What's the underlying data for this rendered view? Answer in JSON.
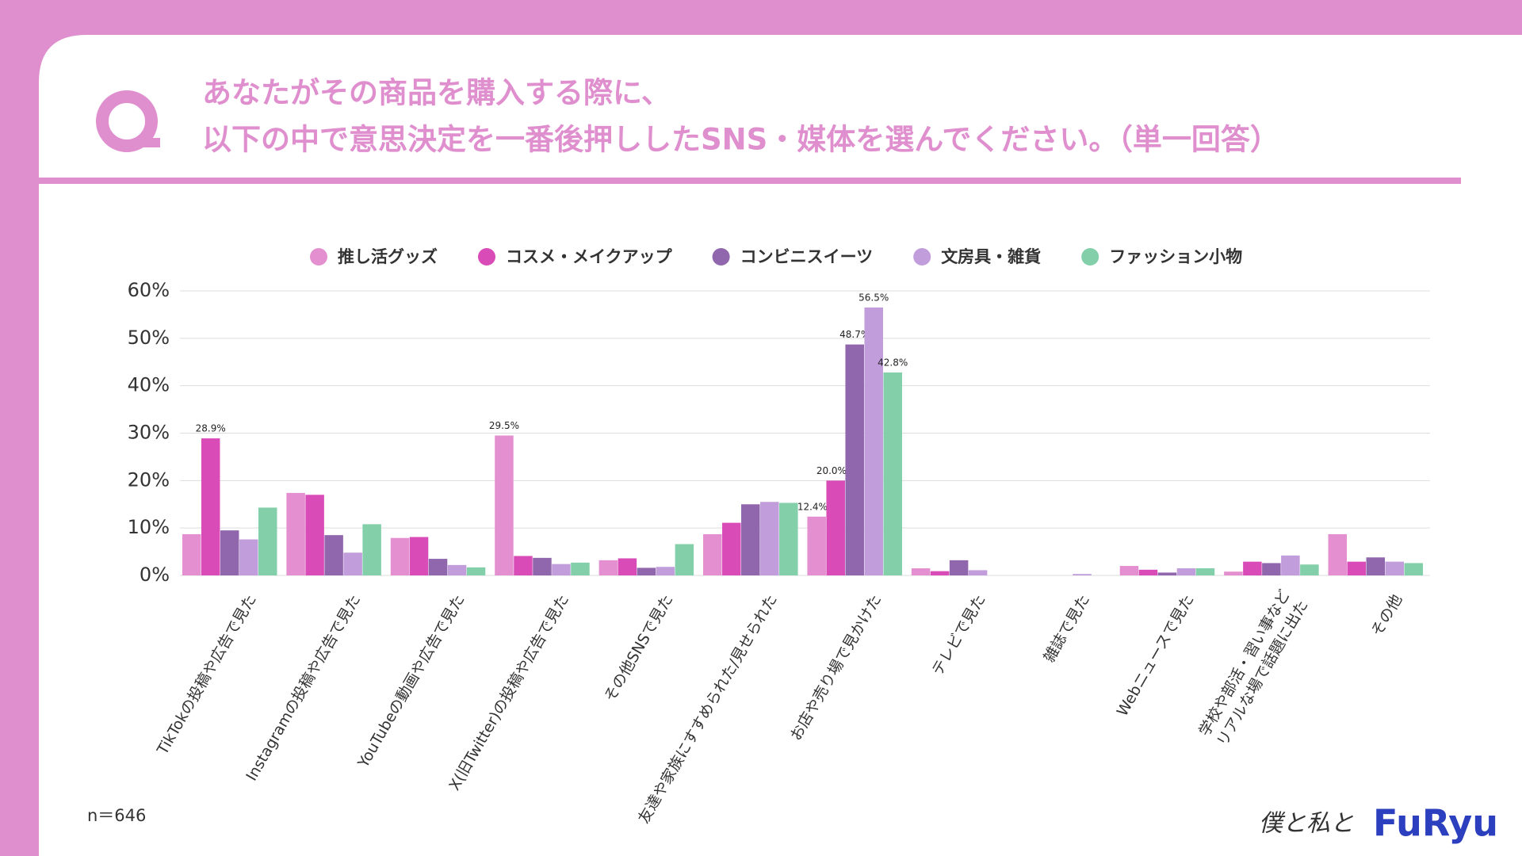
{
  "chart_data": {
    "type": "bar",
    "title": [
      "あなたがその商品を購入する際に、",
      "以下の中で意思決定を一番後押ししたSNS・媒体を選んでください。（単一回答）"
    ],
    "categories": [
      "TikTokの投稿や広告で見た",
      "Instagramの投稿や広告で見た",
      "YouTubeの動画や広告で見た",
      "X(旧Twitter)の投稿や広告で見た",
      "その他SNSで見た",
      "友達や家族にすすめられた/見せられた",
      "お店や売り場で見かけた",
      "テレビで見た",
      "雑誌で見た",
      "Webニュースで見た",
      [
        "学校や部活・習い事など",
        "リアルな場で話題に出た"
      ],
      "その他"
    ],
    "series": [
      {
        "name": "推し活グッズ",
        "color": "#e48fcf",
        "values": [
          8.7,
          17.4,
          7.9,
          29.5,
          3.2,
          8.7,
          12.4,
          1.5,
          0,
          2.0,
          0.8,
          8.7
        ],
        "value_labels": [
          null,
          null,
          null,
          "29.5%",
          null,
          null,
          "12.4%",
          null,
          null,
          null,
          null,
          null
        ]
      },
      {
        "name": "コスメ・メイクアップ",
        "color": "#d94cb8",
        "values": [
          28.9,
          17.0,
          8.1,
          4.1,
          3.6,
          11.1,
          20.0,
          0.9,
          0,
          1.2,
          2.9,
          2.9
        ],
        "value_labels": [
          "28.9%",
          null,
          null,
          null,
          null,
          null,
          "20.0%",
          null,
          null,
          null,
          null,
          null
        ]
      },
      {
        "name": "コンビニスイーツ",
        "color": "#9067ad",
        "values": [
          9.5,
          8.5,
          3.5,
          3.7,
          1.6,
          15.0,
          48.7,
          3.2,
          0,
          0.6,
          2.6,
          3.8
        ],
        "value_labels": [
          null,
          null,
          null,
          null,
          null,
          null,
          "48.7%",
          null,
          null,
          null,
          null,
          null
        ]
      },
      {
        "name": "文房具・雑貨",
        "color": "#c19ddb",
        "values": [
          7.6,
          4.8,
          2.2,
          2.4,
          1.8,
          15.5,
          56.5,
          1.1,
          0.3,
          1.5,
          4.2,
          2.9
        ],
        "value_labels": [
          null,
          null,
          null,
          null,
          null,
          null,
          "56.5%",
          null,
          null,
          null,
          null,
          null
        ]
      },
      {
        "name": "ファッション小物",
        "color": "#82cfaa",
        "values": [
          14.3,
          10.8,
          1.7,
          2.7,
          6.6,
          15.3,
          42.8,
          0,
          0,
          1.5,
          2.3,
          2.6
        ],
        "value_labels": [
          null,
          null,
          null,
          null,
          null,
          null,
          "42.8%",
          null,
          null,
          null,
          null,
          null
        ]
      }
    ],
    "ylim": [
      0,
      60
    ],
    "yticks": [
      {
        "value": 0,
        "label": "0%"
      },
      {
        "value": 10,
        "label": "10%"
      },
      {
        "value": 20,
        "label": "20%"
      },
      {
        "value": 30,
        "label": "30%"
      },
      {
        "value": 40,
        "label": "40%"
      },
      {
        "value": 50,
        "label": "50%"
      },
      {
        "value": 60,
        "label": "60%"
      }
    ],
    "grid": true,
    "legend": "top",
    "note": "n＝646",
    "brand": "僕と私と",
    "logo": "FuRyu"
  }
}
